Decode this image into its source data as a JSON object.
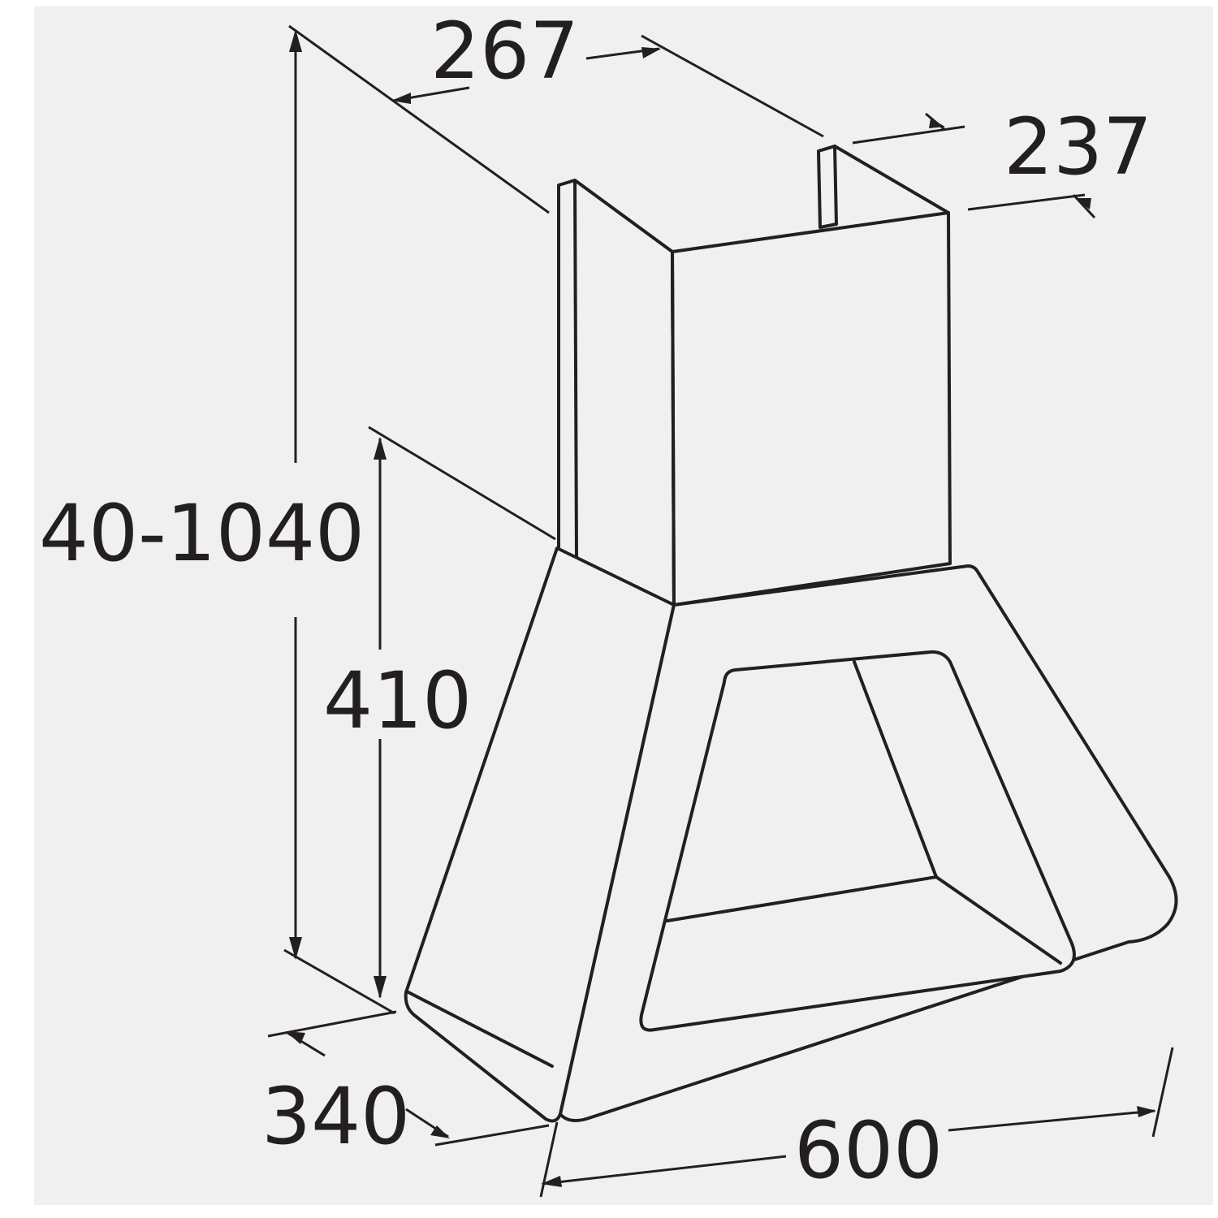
{
  "colors": {
    "background": "#ffffff",
    "panel": "#f0f0f1",
    "line": "#231f20"
  },
  "dimensions": {
    "chimney_width": "267",
    "chimney_depth": "237",
    "total_height": "40-1040",
    "hood_height": "410",
    "hood_depth": "340",
    "hood_width": "600"
  }
}
